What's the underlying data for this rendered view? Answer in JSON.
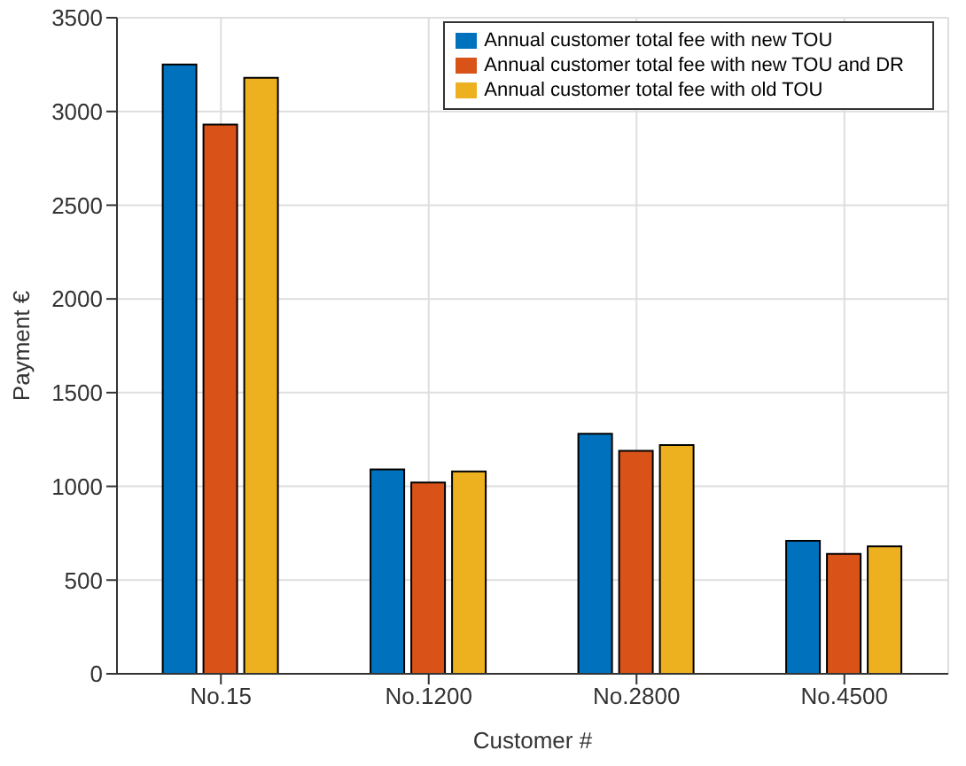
{
  "chart_data": {
    "type": "bar",
    "xlabel": "Customer #",
    "ylabel": "Payment €",
    "categories": [
      "No.15",
      "No.1200",
      "No.2800",
      "No.4500"
    ],
    "series": [
      {
        "name": "Annual customer total fee with new TOU",
        "color": "#0072bd",
        "values": [
          3250,
          1090,
          1280,
          710
        ]
      },
      {
        "name": "Annual customer total fee with new TOU and DR",
        "color": "#d95319",
        "values": [
          2930,
          1020,
          1190,
          640
        ]
      },
      {
        "name": "Annual customer total fee with old TOU",
        "color": "#edb120",
        "values": [
          3180,
          1080,
          1220,
          680
        ]
      }
    ],
    "ylim": [
      0,
      3500
    ],
    "yticks": [
      0,
      500,
      1000,
      1500,
      2000,
      2500,
      3000,
      3500
    ],
    "grid": true,
    "legend": "top right"
  }
}
